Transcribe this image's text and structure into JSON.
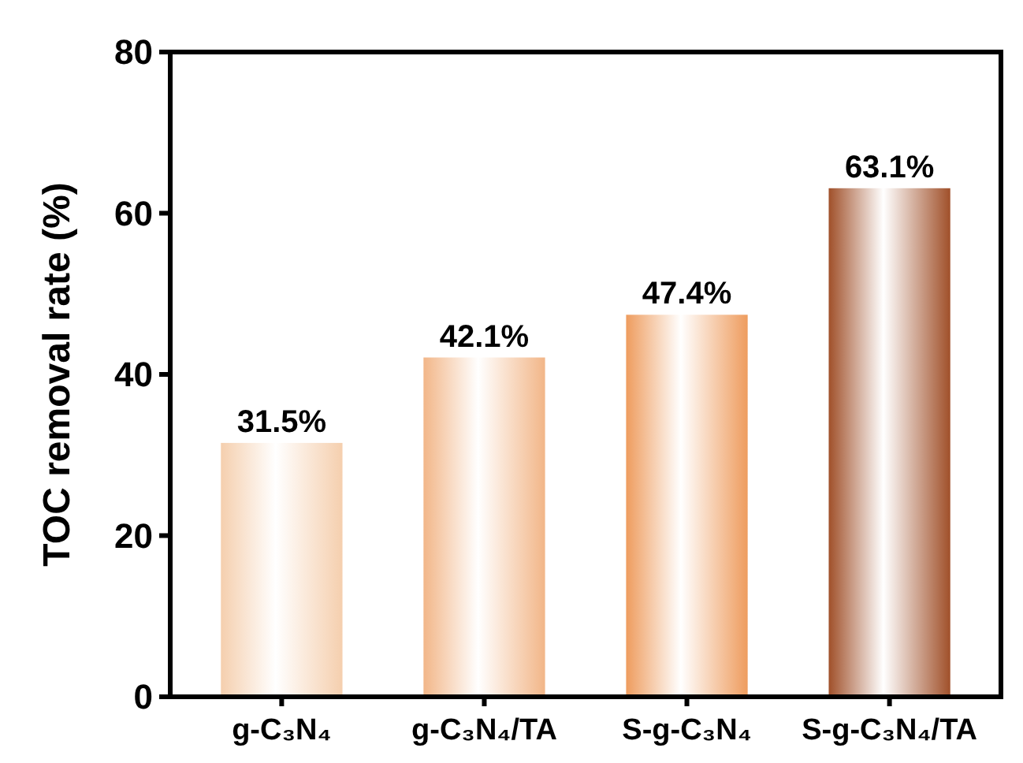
{
  "chart_data": {
    "type": "bar",
    "ylabel": "TOC removal rate (%)",
    "categories": [
      "g-C₃N₄",
      "g-C₃N₄/TA",
      "S-g-C₃N₄",
      "S-g-C₃N₄/TA"
    ],
    "values": [
      31.5,
      42.1,
      47.4,
      63.1
    ],
    "colors": [
      "#f5cfae",
      "#f2b688",
      "#ee9c5e",
      "#a0502a"
    ],
    "value_labels": [
      "31.5%",
      "42.1%",
      "47.4%",
      "63.1%"
    ],
    "ylim": [
      0,
      80
    ],
    "yticks": [
      0,
      20,
      40,
      60,
      80
    ],
    "grid": false
  }
}
